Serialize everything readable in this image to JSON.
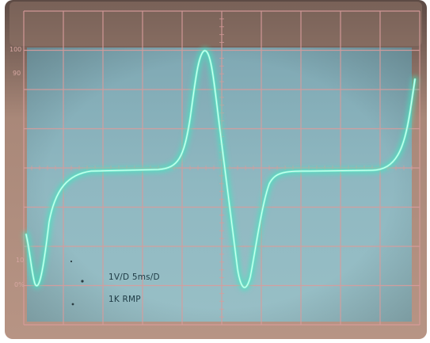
{
  "graticule": {
    "label_100": "100",
    "label_90": "90",
    "label_10": "10",
    "label_0": "0%"
  },
  "captions": {
    "scale": "1V/D 5ms/D",
    "reference": "1K RMP"
  },
  "colors": {
    "bezel": "#b08a7b",
    "bezel_dark": "#6f4f46",
    "screen_top": "#8cb3bd",
    "screen_bottom": "#93bcc4",
    "grid": "#d8a0a0",
    "trace": "#5ef2cc",
    "trace_core": "#d9fff2",
    "caption": "#1e3a44"
  }
}
